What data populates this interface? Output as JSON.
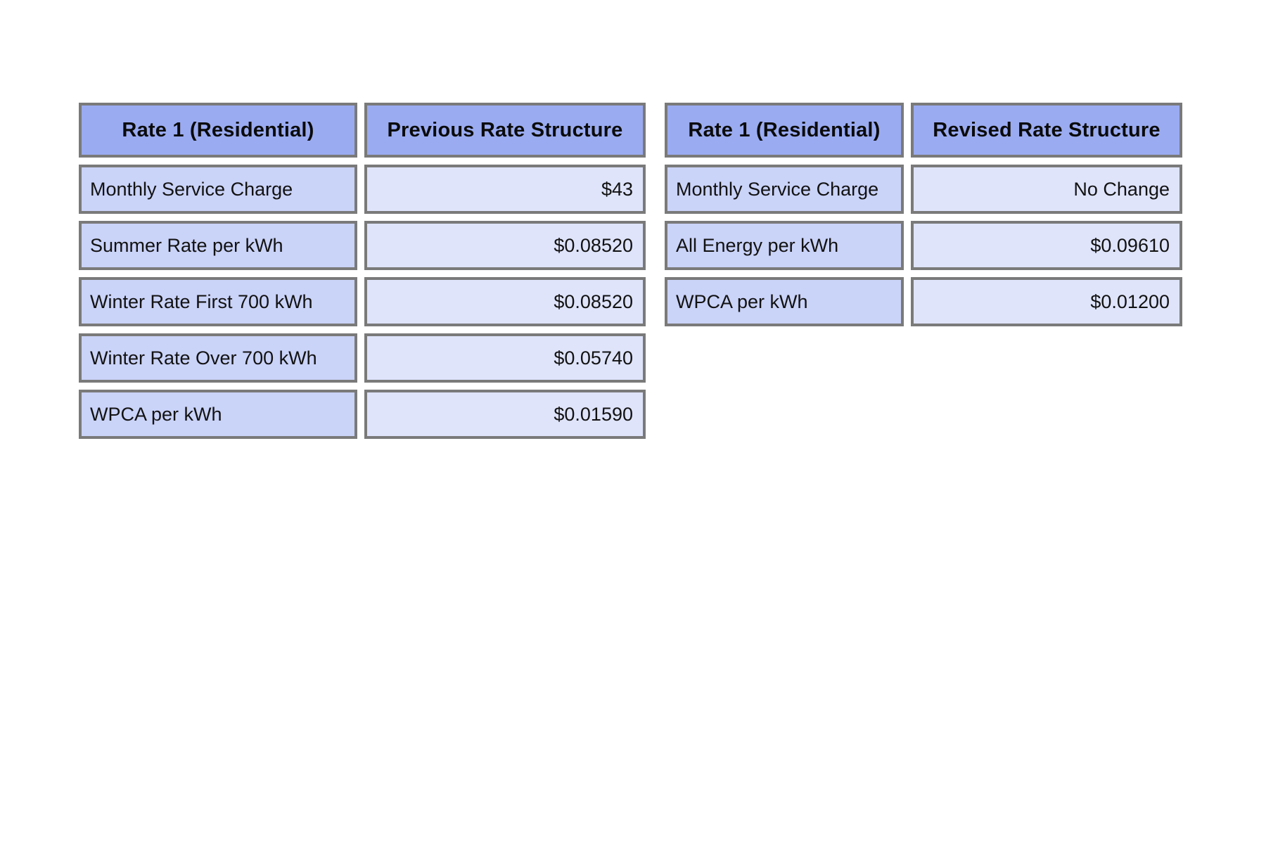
{
  "page": {
    "background": "#ffffff"
  },
  "colors": {
    "header_fill": "#9aabf1",
    "label_fill": "#cad3f8",
    "value_fill": "#dfe4fb",
    "border": "#7a7a7a",
    "text": "#121212"
  },
  "tables": [
    {
      "id": "previous-rate-structure",
      "header": [
        "Rate 1 (Residential)",
        "Previous Rate Structure"
      ],
      "rows": [
        {
          "label": "Monthly Service Charge",
          "value": "$43"
        },
        {
          "label": "Summer Rate per kWh",
          "value": "$0.08520"
        },
        {
          "label": "Winter Rate First 700 kWh",
          "value": "$0.08520"
        },
        {
          "label": "Winter Rate Over 700 kWh",
          "value": "$0.05740"
        },
        {
          "label": "WPCA per kWh",
          "value": "$0.01590"
        }
      ]
    },
    {
      "id": "revised-rate-structure",
      "header": [
        "Rate 1 (Residential)",
        "Revised Rate Structure"
      ],
      "rows": [
        {
          "label": "Monthly Service Charge",
          "value": "No Change"
        },
        {
          "label": "All Energy per kWh",
          "value": "$0.09610"
        },
        {
          "label": "WPCA per kWh",
          "value": "$0.01200"
        }
      ]
    }
  ]
}
